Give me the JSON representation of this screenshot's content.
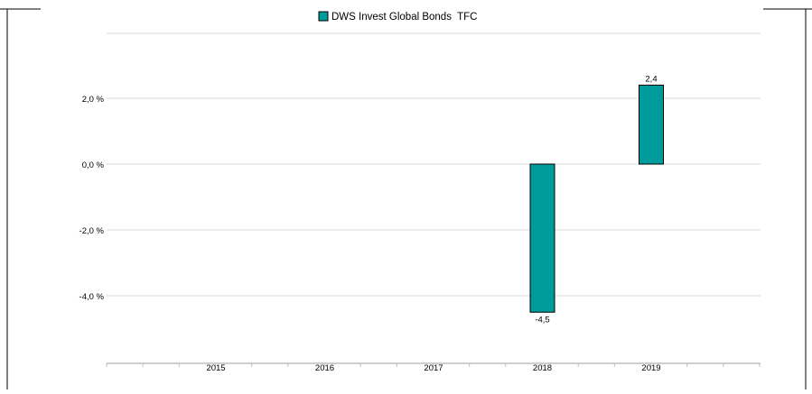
{
  "chart_data": {
    "type": "bar",
    "categories": [
      "2015",
      "2016",
      "2017",
      "2018",
      "2019"
    ],
    "series": [
      {
        "name": "DWS Invest Global Bonds  TFC",
        "values": [
          null,
          null,
          null,
          -4.5,
          2.4
        ],
        "labels": [
          "",
          "",
          "",
          "-4,5",
          "2,4"
        ],
        "color": "#009b9b"
      }
    ],
    "yticks": [
      {
        "value": 2.0,
        "label": "2,0 %"
      },
      {
        "value": 0.0,
        "label": "0,0 %"
      },
      {
        "value": -2.0,
        "label": "-2,0 %"
      },
      {
        "value": -4.0,
        "label": "-4,0 %"
      }
    ],
    "ylim": [
      -6.0,
      4.0
    ],
    "grid": true,
    "legend_position": "top-center",
    "title": "",
    "xlabel": "",
    "ylabel": ""
  }
}
